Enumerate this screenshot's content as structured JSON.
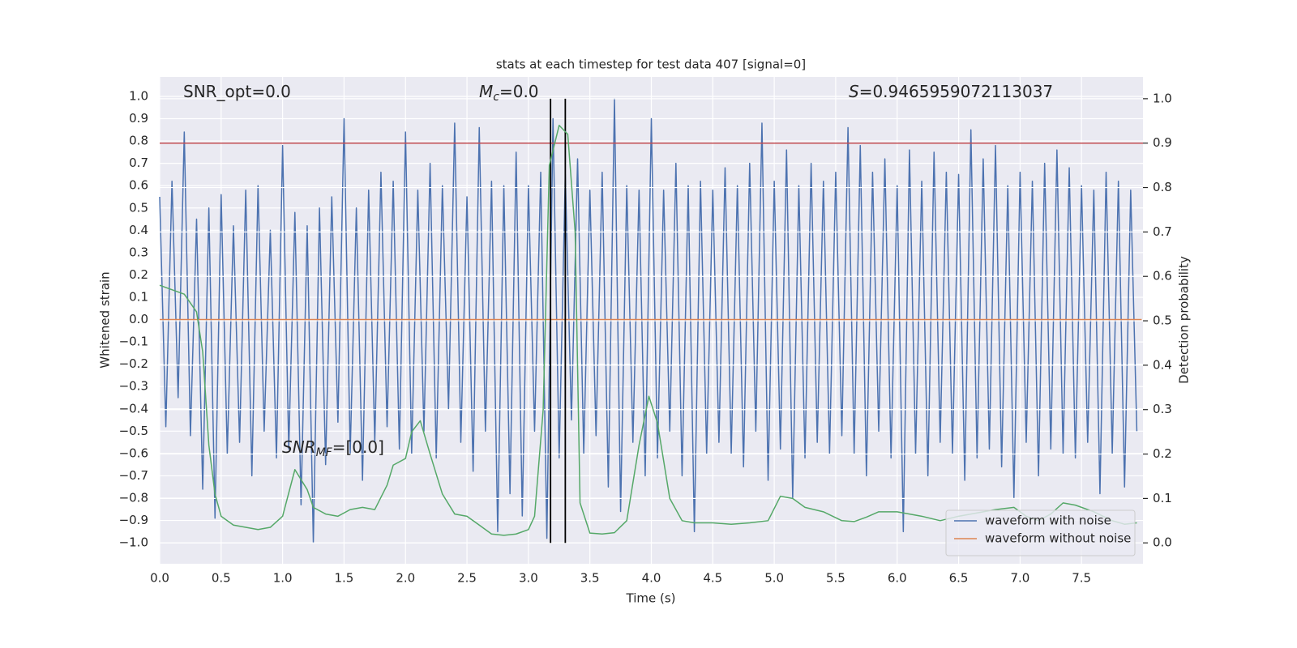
{
  "chart_data": {
    "type": "line",
    "title": "stats at each timestep for test data 407 [signal=0]",
    "xlabel": "Time (s)",
    "ylabel": "Whitened strain",
    "y2label": "Detection probability",
    "xlim": [
      0,
      8
    ],
    "ylim": [
      -1.094,
      1.087
    ],
    "y2lim": [
      -0.047,
      1.049
    ],
    "xticks": [
      {
        "value": 0,
        "label": "0.0"
      },
      {
        "value": 0.5,
        "label": "0.5"
      },
      {
        "value": 1,
        "label": "1.0"
      },
      {
        "value": 1.5,
        "label": "1.5"
      },
      {
        "value": 2,
        "label": "2.0"
      },
      {
        "value": 2.5,
        "label": "2.5"
      },
      {
        "value": 3,
        "label": "3.0"
      },
      {
        "value": 3.5,
        "label": "3.5"
      },
      {
        "value": 4,
        "label": "4.0"
      },
      {
        "value": 4.5,
        "label": "4.5"
      },
      {
        "value": 5,
        "label": "5.0"
      },
      {
        "value": 5.5,
        "label": "5.5"
      },
      {
        "value": 6,
        "label": "6.0"
      },
      {
        "value": 6.5,
        "label": "6.5"
      },
      {
        "value": 7,
        "label": "7.0"
      },
      {
        "value": 7.5,
        "label": "7.5"
      }
    ],
    "yticks": [
      {
        "value": -1,
        "label": "−1.0"
      },
      {
        "value": -0.9,
        "label": "−0.9"
      },
      {
        "value": -0.8,
        "label": "−0.8"
      },
      {
        "value": -0.7,
        "label": "−0.7"
      },
      {
        "value": -0.6,
        "label": "−0.6"
      },
      {
        "value": -0.5,
        "label": "−0.5"
      },
      {
        "value": -0.4,
        "label": "−0.4"
      },
      {
        "value": -0.3,
        "label": "−0.3"
      },
      {
        "value": -0.2,
        "label": "−0.2"
      },
      {
        "value": -0.1,
        "label": "−0.1"
      },
      {
        "value": 0,
        "label": "0.0"
      },
      {
        "value": 0.1,
        "label": "0.1"
      },
      {
        "value": 0.2,
        "label": "0.2"
      },
      {
        "value": 0.3,
        "label": "0.3"
      },
      {
        "value": 0.4,
        "label": "0.4"
      },
      {
        "value": 0.5,
        "label": "0.5"
      },
      {
        "value": 0.6,
        "label": "0.6"
      },
      {
        "value": 0.7,
        "label": "0.7"
      },
      {
        "value": 0.8,
        "label": "0.8"
      },
      {
        "value": 0.9,
        "label": "0.9"
      },
      {
        "value": 1,
        "label": "1.0"
      }
    ],
    "y2ticks": [
      {
        "value": 0,
        "label": "0.0"
      },
      {
        "value": 0.1,
        "label": "0.1"
      },
      {
        "value": 0.2,
        "label": "0.2"
      },
      {
        "value": 0.3,
        "label": "0.3"
      },
      {
        "value": 0.4,
        "label": "0.4"
      },
      {
        "value": 0.5,
        "label": "0.5"
      },
      {
        "value": 0.6,
        "label": "0.6"
      },
      {
        "value": 0.7,
        "label": "0.7"
      },
      {
        "value": 0.8,
        "label": "0.8"
      },
      {
        "value": 0.9,
        "label": "0.9"
      },
      {
        "value": 1,
        "label": "1.0"
      }
    ],
    "grid": true,
    "legend": "lower right",
    "series": [
      {
        "name": "waveform with noise",
        "color": "#4c72b0",
        "x": [
          0,
          0.05,
          0.1,
          0.15,
          0.2,
          0.25,
          0.3,
          0.35,
          0.4,
          0.45,
          0.5,
          0.55,
          0.6,
          0.65,
          0.7,
          0.75,
          0.8,
          0.85,
          0.9,
          0.95,
          1,
          1.05,
          1.1,
          1.15,
          1.2,
          1.25,
          1.3,
          1.35,
          1.4,
          1.45,
          1.5,
          1.55,
          1.6,
          1.65,
          1.7,
          1.75,
          1.8,
          1.85,
          1.9,
          1.95,
          2,
          2.05,
          2.1,
          2.15,
          2.2,
          2.25,
          2.3,
          2.35,
          2.4,
          2.45,
          2.5,
          2.55,
          2.6,
          2.65,
          2.7,
          2.75,
          2.8,
          2.85,
          2.9,
          2.95,
          3,
          3.05,
          3.1,
          3.15,
          3.2,
          3.25,
          3.3,
          3.35,
          3.4,
          3.45,
          3.5,
          3.55,
          3.6,
          3.65,
          3.7,
          3.75,
          3.8,
          3.85,
          3.9,
          3.95,
          4,
          4.05,
          4.1,
          4.15,
          4.2,
          4.25,
          4.3,
          4.35,
          4.4,
          4.45,
          4.5,
          4.55,
          4.6,
          4.65,
          4.7,
          4.75,
          4.8,
          4.85,
          4.9,
          4.95,
          5,
          5.05,
          5.1,
          5.15,
          5.2,
          5.25,
          5.3,
          5.35,
          5.4,
          5.45,
          5.5,
          5.55,
          5.6,
          5.65,
          5.7,
          5.75,
          5.8,
          5.85,
          5.9,
          5.95,
          6,
          6.05,
          6.1,
          6.15,
          6.2,
          6.25,
          6.3,
          6.35,
          6.4,
          6.45,
          6.5,
          6.55,
          6.6,
          6.65,
          6.7,
          6.75,
          6.8,
          6.85,
          6.9,
          6.95,
          7,
          7.05,
          7.1,
          7.15,
          7.2,
          7.25,
          7.3,
          7.35,
          7.4,
          7.45,
          7.5,
          7.55,
          7.6,
          7.65,
          7.7,
          7.75,
          7.8,
          7.85,
          7.9,
          7.95
        ],
        "values": [
          0.55,
          -0.48,
          0.62,
          -0.35,
          0.84,
          -0.52,
          0.45,
          -0.76,
          0.5,
          -0.89,
          0.56,
          -0.6,
          0.42,
          -0.55,
          0.58,
          -0.7,
          0.6,
          -0.5,
          0.4,
          -0.62,
          0.78,
          -0.58,
          0.48,
          -0.83,
          0.42,
          -1.0,
          0.5,
          -0.65,
          0.55,
          -0.46,
          0.9,
          -0.6,
          0.5,
          -0.72,
          0.58,
          -0.55,
          0.66,
          -0.48,
          0.62,
          -0.58,
          0.84,
          -0.6,
          0.58,
          -0.5,
          0.7,
          -0.62,
          0.6,
          -0.4,
          0.88,
          -0.55,
          0.55,
          -0.68,
          0.86,
          -0.5,
          0.62,
          -0.95,
          0.6,
          -0.78,
          0.75,
          -0.88,
          0.6,
          -0.5,
          0.66,
          -0.98,
          0.9,
          -0.62,
          0.65,
          -0.45,
          0.72,
          -0.6,
          0.58,
          -0.52,
          0.66,
          -0.75,
          0.99,
          -0.86,
          0.6,
          -0.55,
          0.58,
          -0.7,
          0.9,
          -0.62,
          0.58,
          -0.5,
          0.7,
          -0.7,
          0.6,
          -0.95,
          0.62,
          -0.6,
          0.58,
          -0.55,
          0.68,
          -0.6,
          0.6,
          -0.66,
          0.7,
          -0.5,
          0.88,
          -0.72,
          0.62,
          -0.58,
          0.76,
          -0.8,
          0.6,
          -0.62,
          0.7,
          -0.55,
          0.62,
          -0.6,
          0.66,
          -0.52,
          0.86,
          -0.6,
          0.78,
          -0.7,
          0.66,
          -0.5,
          0.72,
          -0.62,
          0.6,
          -0.95,
          0.76,
          -0.6,
          0.62,
          -0.7,
          0.75,
          -0.55,
          0.66,
          -0.6,
          0.65,
          -0.72,
          0.85,
          -0.62,
          0.72,
          -0.58,
          0.78,
          -0.66,
          0.6,
          -0.8,
          0.66,
          -0.55,
          0.62,
          -0.7,
          0.7,
          -0.58,
          0.76,
          -0.6,
          0.68,
          -0.62,
          0.6,
          -0.55,
          0.58,
          -0.78,
          0.66,
          -0.6,
          0.62,
          -0.75,
          0.58,
          -0.5
        ]
      },
      {
        "name": "waveform without noise",
        "color": "#dd8452",
        "x": [
          0,
          7.99
        ],
        "values": [
          0,
          0
        ]
      },
      {
        "axis": "y2",
        "color": "#55a868",
        "x": [
          0,
          0.1,
          0.2,
          0.3,
          0.35,
          0.4,
          0.45,
          0.5,
          0.6,
          0.7,
          0.8,
          0.9,
          1,
          1.1,
          1.2,
          1.25,
          1.35,
          1.45,
          1.55,
          1.65,
          1.75,
          1.85,
          1.9,
          2,
          2.05,
          2.12,
          2.2,
          2.3,
          2.4,
          2.5,
          2.6,
          2.7,
          2.8,
          2.9,
          3,
          3.05,
          3.12,
          3.17,
          3.25,
          3.32,
          3.38,
          3.42,
          3.5,
          3.6,
          3.7,
          3.8,
          3.9,
          3.98,
          4.05,
          4.15,
          4.25,
          4.35,
          4.5,
          4.65,
          4.8,
          4.95,
          5.05,
          5.15,
          5.25,
          5.4,
          5.55,
          5.65,
          5.75,
          5.85,
          6,
          6.1,
          6.2,
          6.35,
          6.5,
          6.6,
          6.8,
          6.95,
          7.05,
          7.15,
          7.25,
          7.35,
          7.45,
          7.6,
          7.75,
          7.85,
          7.95
        ],
        "values": [
          0.58,
          0.57,
          0.56,
          0.52,
          0.43,
          0.22,
          0.11,
          0.06,
          0.04,
          0.035,
          0.03,
          0.035,
          0.06,
          0.165,
          0.12,
          0.08,
          0.065,
          0.06,
          0.075,
          0.08,
          0.075,
          0.13,
          0.175,
          0.19,
          0.25,
          0.275,
          0.2,
          0.11,
          0.065,
          0.06,
          0.04,
          0.02,
          0.017,
          0.02,
          0.03,
          0.06,
          0.3,
          0.85,
          0.94,
          0.92,
          0.7,
          0.09,
          0.022,
          0.02,
          0.023,
          0.05,
          0.22,
          0.33,
          0.27,
          0.1,
          0.05,
          0.045,
          0.045,
          0.042,
          0.045,
          0.05,
          0.105,
          0.1,
          0.08,
          0.07,
          0.05,
          0.048,
          0.058,
          0.07,
          0.07,
          0.065,
          0.06,
          0.05,
          0.06,
          0.065,
          0.075,
          0.08,
          0.06,
          0.05,
          0.065,
          0.09,
          0.085,
          0.07,
          0.05,
          0.042,
          0.045
        ]
      }
    ],
    "hlines": [
      {
        "axis": "y2",
        "value": 0.9,
        "color": "#c44e52"
      }
    ],
    "vlines": {
      "x": [
        3.18,
        3.3
      ],
      "y2range": [
        0,
        1
      ],
      "color": "#000000"
    },
    "annotations": [
      [
        {
          "text": "SNR_opt=0.0"
        }
      ],
      [
        {
          "text": "M",
          "style": "italic"
        },
        {
          "text": "c",
          "style": "sub"
        },
        {
          "text": "=0.0"
        }
      ],
      [
        {
          "text": "S",
          "style": "italic"
        },
        {
          "text": "=0.9465959072113037"
        }
      ],
      [
        {
          "text": "SNR",
          "style": "italic"
        },
        {
          "text": "MF",
          "style": "sub"
        },
        {
          "text": "=[0.0]"
        }
      ]
    ]
  }
}
